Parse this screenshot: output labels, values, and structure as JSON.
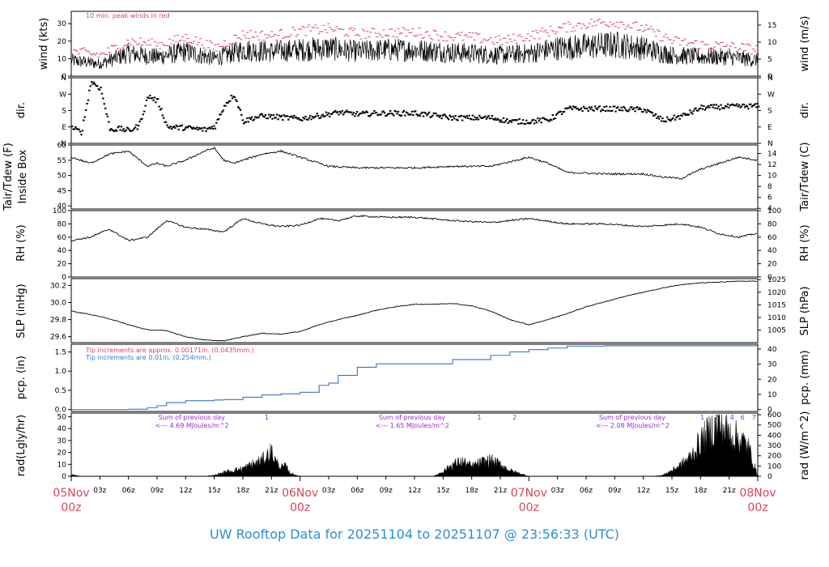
{
  "title": "UW Rooftop Data for 20251104  to  20251107 @ 23:56:33  (UTC)",
  "colors": {
    "peak": "#d9465f",
    "precip": "#3a74c9",
    "purple": "#9a2bd0",
    "day": "#d9465f",
    "title": "#2b8fd0"
  },
  "x_axis": {
    "hour_ticks": [
      "03z",
      "06z",
      "09z",
      "12z",
      "15z",
      "18z",
      "21z",
      "03z",
      "06z",
      "09z",
      "12z",
      "15z",
      "18z",
      "21z",
      "03z",
      "06z",
      "09z",
      "12z",
      "15z",
      "18z",
      "21z"
    ],
    "hour_values": [
      3,
      6,
      9,
      12,
      15,
      18,
      21,
      27,
      30,
      33,
      36,
      39,
      42,
      45,
      51,
      54,
      57,
      60,
      63,
      66,
      69
    ],
    "days": [
      {
        "day": "05Nov",
        "hour": "00z",
        "h": 0
      },
      {
        "day": "06Nov",
        "hour": "00z",
        "h": 24
      },
      {
        "day": "07Nov",
        "hour": "00z",
        "h": 48
      },
      {
        "day": "08Nov",
        "hour": "00z",
        "h": 72
      }
    ],
    "range_hours": [
      0,
      72
    ]
  },
  "panels": {
    "wind": {
      "left_label": "wind (kts)",
      "right_label": "wind (m/s)",
      "left_ticks": [
        "0",
        "10",
        "20",
        "30"
      ],
      "right_ticks": [
        "0",
        "5",
        "10",
        "15"
      ],
      "note": "10 min. peak winds in red"
    },
    "dir": {
      "left_label": "dir.",
      "right_label": "dir.",
      "ticks": [
        "N",
        "E",
        "S",
        "W",
        "N"
      ]
    },
    "temp": {
      "left_label": "Tair/Tdew (F)",
      "left_label2": "Inside Box",
      "right_label": "Tair/Tdew (C)",
      "left_ticks": [
        "40",
        "45",
        "50",
        "55",
        "60"
      ],
      "right_ticks": [
        "4",
        "6",
        "8",
        "10",
        "12",
        "14"
      ]
    },
    "rh": {
      "left_label": "RH (%)",
      "right_label": "RH (%)",
      "ticks": [
        "0",
        "20",
        "40",
        "60",
        "80",
        "100"
      ]
    },
    "slp": {
      "left_label": "SLP (inHg)",
      "right_label": "SLP (hPa)",
      "left_ticks": [
        "29.6",
        "29.8",
        "30.0",
        "30.2"
      ],
      "right_ticks": [
        "1005",
        "1010",
        "1015",
        "1020",
        "1025"
      ]
    },
    "pcp": {
      "left_label": "pcp. (in)",
      "right_label": "pcp. (mm)",
      "left_ticks": [
        "0.0",
        "0.5",
        "1.0",
        "1.5"
      ],
      "right_ticks": [
        "0",
        "10",
        "20",
        "30",
        "40"
      ],
      "note_red": "Tip increments are approx. 0.00171in. (0.0435mm.)",
      "note_blue": "Tip increments are 0.01in. (0.254mm.)"
    },
    "rad": {
      "left_label": "rad(Lgly/hr)",
      "right_label": "rad (W/m^2)",
      "left_ticks": [
        "0",
        "10",
        "20",
        "30",
        "40",
        "50"
      ],
      "right_ticks": [
        "0",
        "100",
        "200",
        "300",
        "400",
        "500",
        "600"
      ],
      "sums": [
        {
          "line1": "Sum of previous day",
          "line2": "<--- 4.69 MJoules/m^2"
        },
        {
          "line1": "Sum of previous day",
          "line2": "<--- 1.65 MJoules/m^2"
        },
        {
          "line1": "Sum of previous day",
          "line2": "<--- 2.08 MJoules/m^2"
        }
      ],
      "markers": [
        {
          "text": "1",
          "h": 20.5
        },
        {
          "text": "1",
          "h": 42.8
        },
        {
          "text": "2",
          "h": 46.5
        },
        {
          "text": "1",
          "h": 66.2
        },
        {
          "text": "2",
          "h": 67.7
        },
        {
          "text": "4",
          "h": 69.3
        },
        {
          "text": "6",
          "h": 70.4
        },
        {
          "text": "7",
          "h": 71.6
        }
      ]
    }
  },
  "chart_data": [
    {
      "type": "line",
      "panel": "wind",
      "ylabel": "wind (kts)",
      "ylim": [
        0,
        37
      ],
      "x": [
        0,
        3,
        6,
        9,
        12,
        15,
        18,
        21,
        24,
        27,
        30,
        33,
        36,
        39,
        42,
        45,
        48,
        51,
        54,
        57,
        60,
        63,
        66,
        69,
        72
      ],
      "series": [
        {
          "name": "wind",
          "values": [
            9,
            7,
            13,
            11,
            14,
            10,
            15,
            14,
            15,
            16,
            14,
            15,
            15,
            14,
            13,
            12,
            13,
            16,
            17,
            18,
            16,
            12,
            11,
            11,
            9
          ]
        },
        {
          "name": "10 min. peak winds in red",
          "values": [
            14,
            12,
            20,
            18,
            22,
            16,
            24,
            23,
            26,
            27,
            24,
            25,
            25,
            23,
            22,
            20,
            23,
            27,
            30,
            31,
            27,
            20,
            18,
            17,
            15
          ]
        }
      ]
    },
    {
      "type": "scatter",
      "panel": "dir",
      "ylabel": "dir.",
      "ylim": [
        0,
        360
      ],
      "x": [
        0,
        1,
        2,
        3,
        4,
        5,
        6,
        7,
        8,
        9,
        10,
        12,
        14,
        15,
        16,
        17,
        18,
        19,
        20,
        24,
        28,
        30,
        32,
        36,
        40,
        44,
        46,
        48,
        50,
        52,
        56,
        60,
        62,
        64,
        66,
        68,
        72
      ],
      "series": [
        {
          "name": "dir.",
          "values": [
            85,
            60,
            340,
            300,
            75,
            80,
            70,
            95,
            260,
            230,
            90,
            85,
            75,
            95,
            210,
            270,
            120,
            140,
            150,
            135,
            170,
            160,
            165,
            165,
            140,
            140,
            120,
            120,
            130,
            190,
            190,
            185,
            125,
            150,
            195,
            200,
            205
          ]
        }
      ]
    },
    {
      "type": "line",
      "panel": "temp",
      "ylabel": "Tair/Tdew (F)",
      "ylim": [
        39,
        60
      ],
      "x": [
        0,
        2,
        4,
        6,
        8,
        9,
        10,
        12,
        14,
        15,
        16,
        17,
        18,
        20,
        22,
        24,
        27,
        30,
        33,
        36,
        40,
        44,
        48,
        50,
        52,
        56,
        60,
        62,
        64,
        66,
        68,
        70,
        72
      ],
      "series": [
        {
          "name": "Tair/Tdew",
          "values": [
            56,
            54,
            57,
            58,
            53,
            54,
            53,
            55,
            58,
            59,
            55,
            54,
            55,
            57,
            58,
            56,
            53,
            52.5,
            52.5,
            52.5,
            53,
            53,
            56,
            54,
            51,
            50.5,
            50.5,
            49.5,
            49,
            52,
            54,
            56,
            55
          ]
        }
      ]
    },
    {
      "type": "line",
      "panel": "rh",
      "ylabel": "RH (%)",
      "ylim": [
        0,
        100
      ],
      "x": [
        0,
        2,
        4,
        6,
        8,
        10,
        12,
        14,
        16,
        18,
        20,
        22,
        24,
        26,
        28,
        30,
        33,
        36,
        40,
        44,
        48,
        50,
        52,
        56,
        60,
        64,
        66,
        68,
        70,
        72
      ],
      "series": [
        {
          "name": "RH",
          "values": [
            55,
            60,
            72,
            55,
            60,
            85,
            75,
            72,
            68,
            88,
            80,
            76,
            78,
            88,
            85,
            92,
            90,
            90,
            85,
            82,
            88,
            84,
            80,
            80,
            76,
            80,
            75,
            65,
            60,
            66
          ]
        }
      ]
    },
    {
      "type": "line",
      "panel": "slp",
      "ylabel": "SLP (inHg)",
      "ylim": [
        29.53,
        30.28
      ],
      "x": [
        0,
        2,
        4,
        6,
        8,
        10,
        12,
        14,
        16,
        18,
        20,
        22,
        24,
        26,
        28,
        30,
        32,
        34,
        36,
        38,
        40,
        42,
        44,
        46,
        48,
        50,
        52,
        54,
        56,
        58,
        60,
        62,
        64,
        66,
        68,
        70,
        72
      ],
      "series": [
        {
          "name": "SLP",
          "values": [
            29.9,
            29.86,
            29.81,
            29.74,
            29.68,
            29.67,
            29.6,
            29.56,
            29.55,
            29.6,
            29.64,
            29.63,
            29.66,
            29.74,
            29.8,
            29.85,
            29.91,
            29.95,
            29.98,
            29.98,
            29.99,
            29.96,
            29.9,
            29.8,
            29.74,
            29.8,
            29.87,
            29.95,
            30.01,
            30.07,
            30.12,
            30.17,
            30.21,
            30.23,
            30.24,
            30.25,
            30.25
          ]
        }
      ]
    },
    {
      "type": "area",
      "panel": "pcp",
      "ylabel": "pcp. (in)",
      "ylim": [
        -0.05,
        1.7
      ],
      "x": [
        0,
        6,
        8,
        9,
        10,
        12,
        15,
        16,
        18,
        20,
        22,
        24,
        26,
        27,
        28,
        30,
        32,
        36,
        40,
        44,
        46,
        48,
        50,
        52,
        56,
        60,
        64,
        68,
        72
      ],
      "series": [
        {
          "name": "pcp.",
          "values": [
            0,
            0.01,
            0.05,
            0.1,
            0.18,
            0.23,
            0.25,
            0.26,
            0.32,
            0.38,
            0.41,
            0.45,
            0.63,
            0.69,
            0.89,
            1.1,
            1.19,
            1.19,
            1.3,
            1.41,
            1.5,
            1.56,
            1.6,
            1.65,
            1.66,
            1.66,
            1.66,
            1.66,
            1.66
          ]
        }
      ]
    },
    {
      "type": "area",
      "panel": "rad",
      "ylabel": "rad(Lgly/hr)",
      "ylim": [
        0,
        53
      ],
      "x": [
        0,
        1,
        14,
        15,
        16,
        17,
        18,
        19,
        20,
        20.5,
        21,
        21.5,
        22,
        22.5,
        23,
        24,
        38,
        39,
        40,
        41,
        42,
        43,
        44,
        45,
        46,
        47,
        48,
        61,
        62,
        63,
        64,
        65,
        66,
        67,
        68,
        69,
        70,
        71,
        72
      ],
      "series": [
        {
          "name": "rad",
          "values": [
            2,
            0,
            0,
            1,
            4,
            6,
            8,
            12,
            16,
            20,
            25,
            14,
            9,
            10,
            3,
            0,
            0,
            5,
            12,
            15,
            10,
            14,
            16,
            12,
            6,
            3,
            0,
            0,
            1,
            6,
            12,
            20,
            35,
            45,
            52,
            43,
            38,
            30,
            0
          ]
        }
      ]
    }
  ]
}
